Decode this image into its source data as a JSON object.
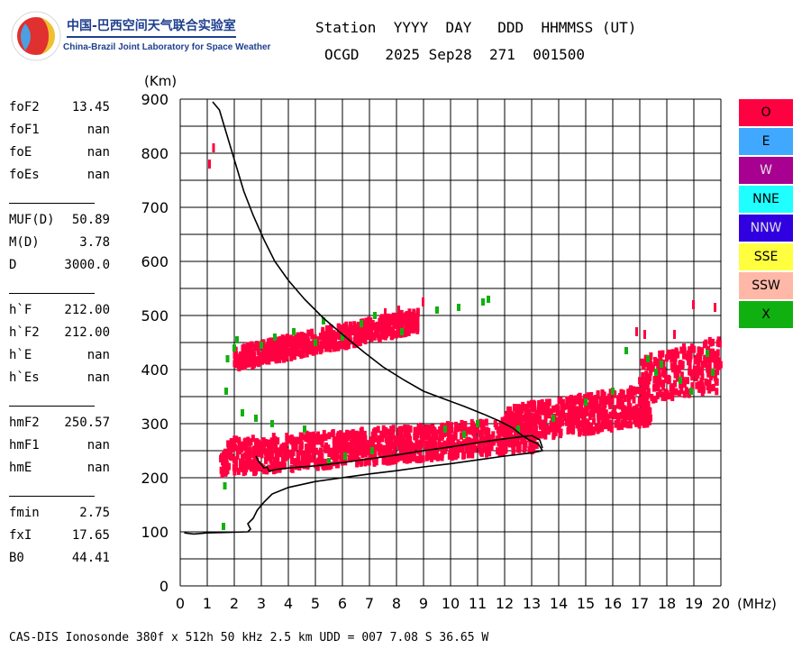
{
  "logo": {
    "name_cn": "中国-巴西空间天气联合实验室",
    "name_en": "China-Brazil Joint Laboratory for Space Weather",
    "icon": "globe-logo-icon"
  },
  "header": {
    "line1": "Station  YYYY  DAY   DDD  HHMMSS (UT)",
    "line2": "OCGD   2025 Sep28  271  001500"
  },
  "params": {
    "group1": [
      {
        "label": "foF2",
        "value": "13.45"
      },
      {
        "label": "foF1",
        "value": "nan"
      },
      {
        "label": "foE",
        "value": "nan"
      },
      {
        "label": "foEs",
        "value": "nan"
      }
    ],
    "group2": [
      {
        "label": "MUF(D)",
        "value": "50.89"
      },
      {
        "label": "M(D)",
        "value": "3.78"
      },
      {
        "label": "D",
        "value": "3000.0"
      }
    ],
    "group3": [
      {
        "label": "h`F",
        "value": "212.00"
      },
      {
        "label": "h`F2",
        "value": "212.00"
      },
      {
        "label": "h`E",
        "value": "nan"
      },
      {
        "label": "h`Es",
        "value": "nan"
      }
    ],
    "group4": [
      {
        "label": "hmF2",
        "value": "250.57"
      },
      {
        "label": "hmF1",
        "value": "nan"
      },
      {
        "label": "hmE",
        "value": "nan"
      }
    ],
    "group5": [
      {
        "label": "fmin",
        "value": "2.75"
      },
      {
        "label": "fxI",
        "value": "17.65"
      },
      {
        "label": "B0",
        "value": "44.41"
      }
    ]
  },
  "legend": [
    {
      "label": "O",
      "color": "#ff0040"
    },
    {
      "label": "E",
      "color": "#40a8ff"
    },
    {
      "label": "W",
      "color": "#a80090"
    },
    {
      "label": "NNE",
      "color": "#20ffff"
    },
    {
      "label": "NNW",
      "color": "#3000e0"
    },
    {
      "label": "SSE",
      "color": "#ffff40"
    },
    {
      "label": "SSW",
      "color": "#ffb8a8"
    },
    {
      "label": "X",
      "color": "#10b010"
    }
  ],
  "footer": "CAS-DIS Ionosonde 380f x 512h 50 kHz 2.5 km UDD = 007 7.08 S 36.65 W",
  "chart_data": {
    "type": "scatter",
    "title": "",
    "xlabel": "(MHz)",
    "ylabel": "(Km)",
    "xlim": [
      0,
      20
    ],
    "ylim": [
      0,
      900
    ],
    "x_ticks": [
      0,
      1,
      2,
      3,
      4,
      5,
      6,
      7,
      8,
      9,
      10,
      11,
      12,
      13,
      14,
      15,
      16,
      17,
      18,
      19,
      20
    ],
    "y_ticks": [
      0,
      100,
      200,
      300,
      400,
      500,
      600,
      700,
      800,
      900
    ],
    "grid": true,
    "legend_placement": "right",
    "series": [
      {
        "name": "O",
        "color": "#ff0040",
        "regions": [
          {
            "desc": "F-trace low",
            "x": [
              1.5,
              13.2
            ],
            "y_bottom": [
              205,
              250
            ],
            "y_top": [
              270,
              310
            ]
          },
          {
            "desc": "F-trace high",
            "x": [
              12.0,
              17.4
            ],
            "y_bottom": [
              262,
              300
            ],
            "y_top": [
              330,
              370
            ]
          },
          {
            "desc": "F multi-hop",
            "x": [
              2.0,
              8.8
            ],
            "y_bottom": [
              400,
              470
            ],
            "y_top": [
              440,
              510
            ]
          },
          {
            "desc": "high freq tail",
            "x": [
              17.0,
              20.0
            ],
            "y_bottom": [
              340,
              360
            ],
            "y_top": [
              420,
              460
            ]
          }
        ],
        "points": [
          [
            1.1,
            780
          ],
          [
            1.25,
            810
          ],
          [
            7.6,
            505
          ],
          [
            8.1,
            510
          ],
          [
            9.0,
            525
          ],
          [
            16.9,
            470
          ],
          [
            17.2,
            465
          ],
          [
            19.0,
            520
          ],
          [
            19.8,
            515
          ],
          [
            18.3,
            465
          ]
        ]
      },
      {
        "name": "X",
        "color": "#10b010",
        "points": [
          [
            1.6,
            110
          ],
          [
            1.65,
            185
          ],
          [
            1.7,
            360
          ],
          [
            1.75,
            420
          ],
          [
            2.0,
            440
          ],
          [
            2.1,
            455
          ],
          [
            3.0,
            445
          ],
          [
            3.5,
            460
          ],
          [
            4.2,
            470
          ],
          [
            5.0,
            450
          ],
          [
            5.3,
            490
          ],
          [
            6.0,
            460
          ],
          [
            6.7,
            485
          ],
          [
            7.2,
            500
          ],
          [
            8.2,
            470
          ],
          [
            9.5,
            510
          ],
          [
            10.3,
            515
          ],
          [
            11.2,
            525
          ],
          [
            11.4,
            530
          ],
          [
            2.3,
            320
          ],
          [
            2.8,
            310
          ],
          [
            3.4,
            300
          ],
          [
            4.6,
            290
          ],
          [
            5.5,
            230
          ],
          [
            6.1,
            240
          ],
          [
            7.1,
            250
          ],
          [
            9.8,
            290
          ],
          [
            10.5,
            280
          ],
          [
            11.0,
            300
          ],
          [
            12.5,
            290
          ],
          [
            13.8,
            310
          ],
          [
            15.0,
            340
          ],
          [
            16.0,
            360
          ],
          [
            17.6,
            395
          ],
          [
            17.8,
            410
          ],
          [
            18.5,
            380
          ],
          [
            18.9,
            360
          ],
          [
            19.5,
            430
          ],
          [
            19.7,
            395
          ],
          [
            16.5,
            435
          ],
          [
            17.3,
            420
          ]
        ]
      }
    ],
    "profiles": [
      {
        "name": "profile",
        "color": "#000000",
        "points": [
          [
            0.15,
            98
          ],
          [
            0.5,
            96
          ],
          [
            1.0,
            98
          ],
          [
            1.8,
            99
          ],
          [
            2.5,
            100
          ],
          [
            2.6,
            105
          ],
          [
            2.5,
            115
          ],
          [
            2.7,
            125
          ],
          [
            2.85,
            140
          ],
          [
            3.1,
            155
          ],
          [
            3.4,
            170
          ],
          [
            4.0,
            182
          ],
          [
            5.0,
            193
          ],
          [
            6.0,
            200
          ],
          [
            7.0,
            207
          ],
          [
            8.0,
            213
          ],
          [
            9.0,
            220
          ],
          [
            10.0,
            226
          ],
          [
            11.0,
            233
          ],
          [
            12.0,
            240
          ],
          [
            13.0,
            246
          ],
          [
            13.4,
            250
          ],
          [
            13.25,
            262
          ],
          [
            12.9,
            270
          ],
          [
            12.6,
            280
          ],
          [
            12.3,
            292
          ],
          [
            11.8,
            305
          ],
          [
            11.2,
            318
          ],
          [
            10.5,
            332
          ],
          [
            9.8,
            345
          ],
          [
            9.0,
            360
          ],
          [
            8.3,
            380
          ],
          [
            7.5,
            405
          ],
          [
            6.8,
            432
          ],
          [
            6.0,
            465
          ],
          [
            5.3,
            495
          ],
          [
            4.6,
            530
          ],
          [
            4.0,
            565
          ],
          [
            3.5,
            600
          ],
          [
            3.1,
            640
          ],
          [
            2.7,
            685
          ],
          [
            2.35,
            730
          ],
          [
            2.05,
            780
          ],
          [
            1.75,
            830
          ],
          [
            1.45,
            880
          ],
          [
            1.2,
            895
          ]
        ]
      },
      {
        "name": "virtual-height",
        "color": "#000000",
        "points": [
          [
            2.8,
            240
          ],
          [
            2.9,
            230
          ],
          [
            3.0,
            225
          ],
          [
            3.1,
            218
          ],
          [
            3.2,
            220
          ],
          [
            3.3,
            212
          ],
          [
            3.5,
            215
          ],
          [
            4.0,
            218
          ],
          [
            5.0,
            222
          ],
          [
            6.0,
            228
          ],
          [
            7.0,
            235
          ],
          [
            8.0,
            242
          ],
          [
            9.0,
            250
          ],
          [
            10.0,
            257
          ],
          [
            11.0,
            265
          ],
          [
            12.0,
            272
          ],
          [
            13.0,
            278
          ],
          [
            13.3,
            270
          ],
          [
            13.4,
            255
          ]
        ]
      }
    ]
  }
}
